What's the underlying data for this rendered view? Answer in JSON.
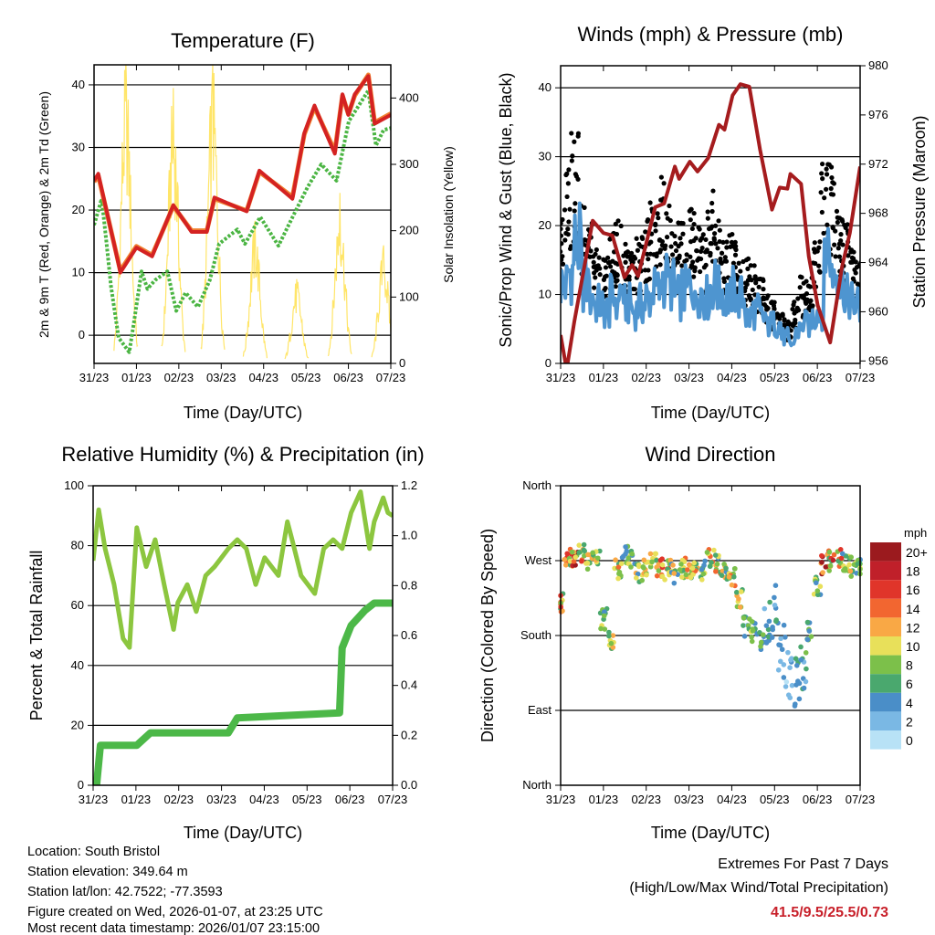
{
  "footer": {
    "location": "Location: South Bristol",
    "elevation": "Station elevation: 349.64 m",
    "latlon": "Station lat/lon: 42.7522; -77.3593",
    "created": "Figure created on Wed, 2026-01-07, at 23:25 UTC",
    "timestamp": "Most recent data timestamp: 2026/01/07 23:15:00",
    "extremes_title": "Extremes For Past 7 Days",
    "extremes_subtitle": "(High/Low/Max Wind/Total Precipitation)",
    "extremes_values": "41.5/9.5/25.5/0.73",
    "extremes_color": "#c8202a"
  },
  "chart_data": [
    {
      "type": "line",
      "title": "Temperature (F)",
      "xlabel": "Time (Day/UTC)",
      "ylabel": "2m & 9m T (Red, Orange) & 2m Td (Green)",
      "ylabel_right": "Solar Insolation (Yellow)",
      "x_ticks": [
        "31/23",
        "01/23",
        "02/23",
        "03/23",
        "04/23",
        "05/23",
        "06/23",
        "07/23"
      ],
      "y_ticks": [
        0,
        10,
        20,
        30,
        40
      ],
      "y_ticks_right": [
        0,
        100,
        200,
        300,
        400
      ],
      "ylim": [
        -4.5,
        43.2
      ],
      "ylim_right": [
        0,
        450
      ],
      "x_unit": "days since start",
      "series": [
        {
          "name": "2m T",
          "color": "#d42222",
          "x": [
            0,
            0.1,
            0.6,
            0.62,
            1.0,
            1.37,
            1.87,
            2.3,
            2.66,
            2.84,
            3.6,
            3.9,
            4.68,
            4.96,
            5.2,
            5.4,
            5.68,
            5.86,
            6.0,
            6.15,
            6.47,
            6.62,
            7.0
          ],
          "y": [
            24.7,
            25.8,
            10.7,
            10,
            14,
            12.6,
            20.8,
            16.5,
            16.5,
            22,
            19.8,
            26.3,
            21.8,
            32.3,
            36.7,
            33.4,
            29,
            38.5,
            35.2,
            38.5,
            41.4,
            33.8,
            35.2
          ]
        },
        {
          "name": "9m T",
          "color": "#f08030",
          "x": [
            0,
            0.1,
            0.6,
            0.62,
            1.0,
            1.37,
            1.87,
            2.3,
            2.66,
            2.84,
            3.6,
            3.9,
            4.68,
            4.96,
            5.2,
            5.4,
            5.68,
            5.86,
            6.0,
            6.15,
            6.47,
            6.62,
            7.0
          ],
          "y": [
            24.5,
            25.5,
            10.9,
            10.3,
            14.2,
            12.8,
            20.6,
            16.7,
            16.7,
            21.8,
            19.9,
            26.1,
            22.1,
            32.1,
            36.4,
            33.5,
            29.4,
            38.3,
            35.3,
            38.3,
            41.6,
            34,
            35.4
          ]
        },
        {
          "name": "2m Td",
          "color": "#4bb543",
          "x": [
            0,
            0.18,
            0.29,
            0.4,
            0.58,
            0.83,
            0.94,
            1.12,
            1.26,
            1.44,
            1.73,
            1.94,
            2.16,
            2.45,
            2.73,
            2.95,
            3.38,
            3.56,
            3.92,
            4.35,
            4.75,
            5.04,
            5.36,
            5.72,
            6.01,
            6.47,
            6.65,
            6.83,
            7.0
          ],
          "y": [
            17.6,
            21.8,
            15,
            7.8,
            -0.4,
            -2.7,
            2,
            10.2,
            7.4,
            8.8,
            10.2,
            3.9,
            6.8,
            4.5,
            8.8,
            14.6,
            16.9,
            14.6,
            18.9,
            14.3,
            19.8,
            23.7,
            27.3,
            24.7,
            34.2,
            39.1,
            30.3,
            32.8,
            33.1
          ]
        },
        {
          "name": "Solar Insolation",
          "color": "#ffe14d",
          "daily_peak_day": [
            0.75,
            1.87,
            2.8,
            3.8,
            4.78,
            5.8,
            6.83
          ],
          "daily_peak_value": [
            457,
            415,
            450,
            215,
            127,
            257,
            178
          ]
        }
      ]
    },
    {
      "type": "scatter",
      "title": "Winds (mph) & Pressure (mb)",
      "xlabel": "Time (Day/UTC)",
      "ylabel": "Sonic/Prop Wind & Gust (Blue, Black)",
      "ylabel_right": "Station Pressure (Maroon)",
      "x_ticks": [
        "31/23",
        "01/23",
        "02/23",
        "03/23",
        "04/23",
        "05/23",
        "06/23",
        "07/23"
      ],
      "y_ticks": [
        0,
        10,
        20,
        30,
        40
      ],
      "y_ticks_right": [
        956,
        960,
        964,
        968,
        972,
        976,
        980
      ],
      "ylim": [
        0,
        43.2
      ],
      "ylim_right": [
        955.8,
        980
      ],
      "series": [
        {
          "name": "Wind",
          "color": "#4e95d0",
          "step_days": 0.1667,
          "y": [
            12,
            14,
            18,
            12,
            10,
            9,
            8,
            10,
            11,
            9,
            8,
            9,
            10,
            11,
            13,
            12,
            10,
            11,
            12,
            11,
            10,
            12,
            11,
            10,
            11,
            10,
            7,
            8,
            7,
            6,
            6,
            4,
            3,
            5,
            6,
            7,
            8,
            18,
            14,
            12,
            10,
            9,
            8
          ]
        },
        {
          "name": "Gust",
          "color": "#000000",
          "step_days": 0.1667,
          "y": [
            20,
            28,
            32,
            22,
            20,
            16,
            15,
            18,
            20,
            17,
            16,
            18,
            20,
            24,
            26,
            22,
            18,
            20,
            22,
            21,
            18,
            24,
            20,
            17,
            18,
            17,
            15,
            14,
            12,
            10,
            9,
            7,
            6,
            9,
            12,
            14,
            17,
            30,
            28,
            22,
            20,
            16,
            14
          ]
        },
        {
          "name": "Station Pressure",
          "color": "#a51c1e",
          "x": [
            0,
            0.14,
            0.32,
            0.75,
            1.0,
            1.21,
            1.49,
            1.67,
            1.81,
            2.21,
            2.42,
            2.67,
            2.77,
            3.02,
            3.2,
            3.45,
            3.7,
            3.83,
            4.02,
            4.2,
            4.41,
            4.66,
            4.94,
            5.12,
            5.3,
            5.37,
            5.62,
            5.8,
            6.01,
            6.3,
            6.58,
            6.76,
            7.0
          ],
          "y": [
            958.1,
            955.3,
            959.2,
            967.4,
            966.4,
            966.2,
            962.8,
            963.8,
            962.9,
            968.5,
            968.8,
            971.8,
            970.8,
            972.2,
            971.4,
            972.5,
            975.2,
            974.8,
            977.6,
            978.5,
            978.3,
            973.2,
            968.3,
            970.1,
            970,
            971.2,
            970.4,
            964.5,
            960.5,
            957.5,
            963.7,
            966.4,
            971.8
          ]
        }
      ]
    },
    {
      "type": "line",
      "title": "Relative Humidity (%) & Precipitation (in)",
      "xlabel": "Time (Day/UTC)",
      "ylabel": "Percent & Total Rainfall",
      "x_ticks": [
        "31/23",
        "01/23",
        "02/23",
        "03/23",
        "04/23",
        "05/23",
        "06/23",
        "07/23"
      ],
      "y_ticks": [
        0,
        20,
        40,
        60,
        80,
        100
      ],
      "y_ticks_right": [
        "0.0",
        "0.2",
        "0.4",
        "0.6",
        "0.8",
        "1.0",
        "1.2"
      ],
      "ylim": [
        0,
        100
      ],
      "ylim_right": [
        0,
        1.2
      ],
      "series": [
        {
          "name": "Relative Humidity",
          "color": "#8cc63f",
          "x": [
            0,
            0.13,
            0.28,
            0.49,
            0.7,
            0.85,
            1.02,
            1.24,
            1.45,
            1.66,
            1.88,
            1.98,
            2.2,
            2.41,
            2.63,
            2.84,
            3.16,
            3.37,
            3.58,
            3.8,
            4.01,
            4.33,
            4.54,
            4.65,
            4.86,
            5.18,
            5.39,
            5.61,
            5.82,
            6.03,
            6.25,
            6.46,
            6.57,
            6.78,
            6.89,
            7.0
          ],
          "y": [
            75,
            92,
            79,
            67,
            49,
            46,
            86,
            73,
            82,
            67,
            52,
            61,
            67,
            58,
            70,
            73,
            79,
            82,
            79,
            67,
            76,
            70,
            88,
            82,
            70,
            64,
            79,
            82,
            79,
            91,
            98,
            79,
            88,
            96,
            91,
            90
          ]
        },
        {
          "name": "Total Precipitation",
          "color": "#4cb848",
          "x": [
            0,
            0.08,
            0.17,
            1.02,
            1.34,
            3.16,
            3.37,
            5.76,
            5.82,
            6.03,
            6.35,
            6.57,
            7.0
          ],
          "y": [
            0,
            0,
            0.16,
            0.16,
            0.21,
            0.21,
            0.27,
            0.29,
            0.55,
            0.64,
            0.7,
            0.73,
            0.73
          ]
        }
      ]
    },
    {
      "type": "scatter",
      "title": "Wind Direction",
      "xlabel": "Time (Day/UTC)",
      "ylabel": "Direction (Colored By Speed)",
      "x_ticks": [
        "31/23",
        "01/23",
        "02/23",
        "03/23",
        "04/23",
        "05/23",
        "06/23",
        "07/23"
      ],
      "y_ticks": [
        "North",
        "East",
        "South",
        "West",
        "North"
      ],
      "ylim": [
        0,
        360
      ],
      "step_days": 0.1667,
      "direction": [
        220,
        275,
        270,
        280,
        265,
        270,
        200,
        175,
        260,
        275,
        270,
        255,
        265,
        268,
        262,
        258,
        255,
        262,
        260,
        265,
        258,
        272,
        265,
        260,
        250,
        225,
        190,
        185,
        175,
        200,
        210,
        160,
        130,
        120,
        150,
        185,
        240,
        265,
        270,
        275,
        268,
        262,
        265
      ],
      "speed": [
        12,
        14,
        18,
        12,
        10,
        9,
        8,
        10,
        11,
        9,
        8,
        9,
        10,
        11,
        13,
        12,
        10,
        11,
        12,
        11,
        10,
        12,
        11,
        10,
        11,
        10,
        7,
        8,
        7,
        6,
        6,
        4,
        3,
        5,
        6,
        7,
        8,
        18,
        14,
        12,
        10,
        9,
        8
      ],
      "legend": {
        "title": "mph",
        "labels": [
          "20+",
          "18",
          "16",
          "14",
          "12",
          "10",
          "8",
          "6",
          "4",
          "2",
          "0"
        ],
        "colors": [
          "#9b1a1e",
          "#c0202a",
          "#e0352a",
          "#f26630",
          "#f9a845",
          "#e8e05a",
          "#7cc04a",
          "#4aa86e",
          "#4a8ec8",
          "#7ab8e4",
          "#b8e2f6"
        ]
      }
    }
  ]
}
